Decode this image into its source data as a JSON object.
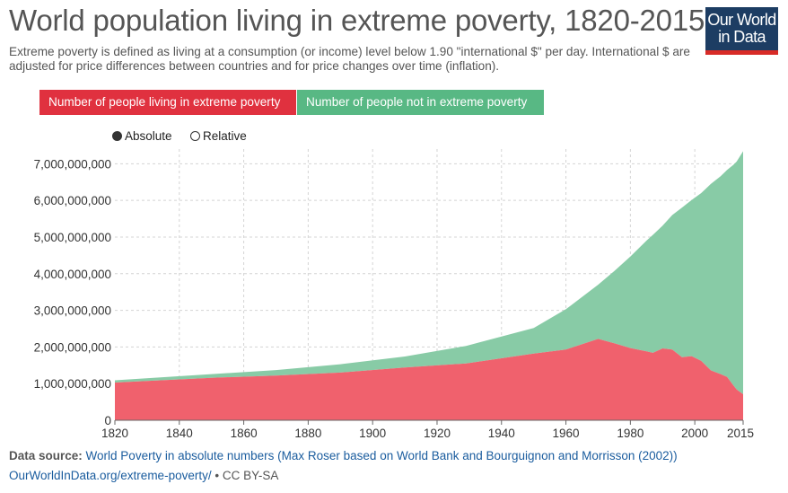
{
  "title": "World population living in extreme poverty, 1820-2015",
  "subtitle": "Extreme poverty is defined as living at a consumption (or income) level below 1.90 \"international $\" per day. International $ are adjusted for price differences between countries and for price changes over time (inflation).",
  "logo": {
    "line1": "Our World",
    "line2": "in Data"
  },
  "legend": {
    "poor": "Number of people living in extreme poverty",
    "not_poor": "Number of people not in extreme poverty"
  },
  "modes": {
    "absolute": "Absolute",
    "relative": "Relative",
    "selected": "absolute"
  },
  "colors": {
    "poor": "#f0616d",
    "not_poor": "#88cba6",
    "poor_button": "#e0313f",
    "not_poor_button": "#58b884"
  },
  "footer": {
    "source_label": "Data source:",
    "source_text": "World Poverty in absolute numbers (Max Roser based on World Bank and Bourguignon and Morrisson (2002))",
    "url": "OurWorldInData.org/extreme-poverty/",
    "license": "• CC BY-SA"
  },
  "chart_data": {
    "type": "area",
    "stacked": true,
    "xlim": [
      1820,
      2015
    ],
    "ylim": [
      0,
      7400000000
    ],
    "x_ticks": [
      1820,
      1840,
      1860,
      1880,
      1900,
      1920,
      1940,
      1960,
      1980,
      2000,
      2015
    ],
    "y_ticks": [
      0,
      1000000000,
      2000000000,
      3000000000,
      4000000000,
      5000000000,
      6000000000,
      7000000000
    ],
    "y_tick_labels": [
      "0",
      "1,000,000,000",
      "2,000,000,000",
      "3,000,000,000",
      "4,000,000,000",
      "5,000,000,000",
      "6,000,000,000",
      "7,000,000,000"
    ],
    "grid": true,
    "series": [
      {
        "name": "Number of people living in extreme poverty",
        "x": [
          1820,
          1850,
          1870,
          1890,
          1910,
          1929,
          1950,
          1960,
          1970,
          1975,
          1980,
          1985,
          1987,
          1990,
          1993,
          1996,
          1999,
          2002,
          2005,
          2008,
          2010,
          2012,
          2013,
          2015
        ],
        "y": [
          1030000000,
          1160000000,
          1220000000,
          1300000000,
          1440000000,
          1550000000,
          1820000000,
          1930000000,
          2220000000,
          2100000000,
          1970000000,
          1880000000,
          1840000000,
          1960000000,
          1930000000,
          1720000000,
          1750000000,
          1620000000,
          1360000000,
          1260000000,
          1180000000,
          950000000,
          840000000,
          710000000
        ]
      },
      {
        "name": "Number of people not in extreme poverty",
        "x": [
          1820,
          1850,
          1870,
          1890,
          1910,
          1929,
          1950,
          1960,
          1970,
          1975,
          1980,
          1985,
          1987,
          1990,
          1993,
          1996,
          1999,
          2002,
          2005,
          2008,
          2010,
          2012,
          2013,
          2015
        ],
        "y": [
          60000000,
          100000000,
          150000000,
          230000000,
          300000000,
          480000000,
          700000000,
          1100000000,
          1480000000,
          1970000000,
          2500000000,
          3020000000,
          3220000000,
          3350000000,
          3670000000,
          4080000000,
          4260000000,
          4580000000,
          5090000000,
          5400000000,
          5650000000,
          6020000000,
          6220000000,
          6630000000
        ]
      }
    ]
  }
}
